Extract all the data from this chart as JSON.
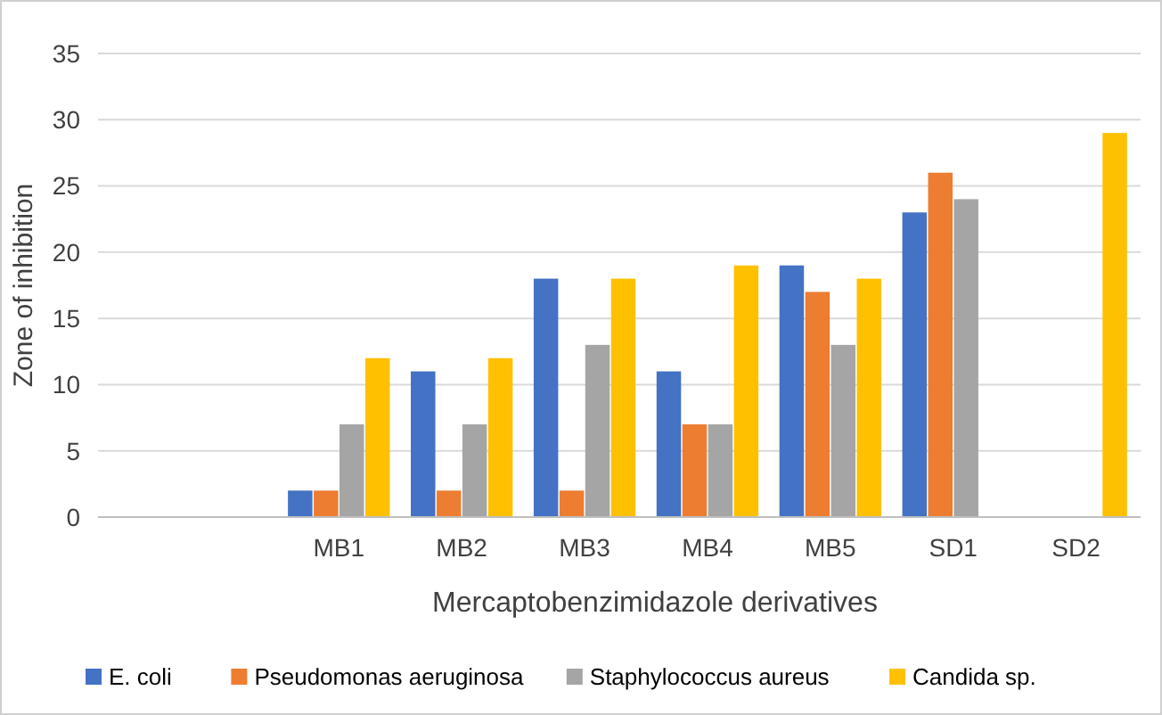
{
  "chart_data": {
    "type": "bar",
    "xlabel": "Mercaptobenzimidazole derivatives",
    "ylabel": "Zone of inhibition",
    "categories": [
      null,
      "MB1",
      "MB2",
      "MB3",
      "MB4",
      "MB5",
      "SD1",
      "SD2"
    ],
    "series": [
      {
        "name": "E. coli",
        "color": "#4472c4",
        "values": [
          null,
          2,
          11,
          18,
          11,
          19,
          23,
          null
        ]
      },
      {
        "name": "Pseudomonas aeruginosa",
        "color": "#ed7d31",
        "values": [
          null,
          2,
          2,
          2,
          7,
          17,
          26,
          null
        ]
      },
      {
        "name": "Staphylococcus aureus",
        "color": "#a5a5a5",
        "values": [
          null,
          7,
          7,
          13,
          7,
          13,
          24,
          null
        ]
      },
      {
        "name": "Candida sp.",
        "color": "#ffc000",
        "values": [
          null,
          12,
          12,
          18,
          19,
          18,
          null,
          29
        ]
      }
    ],
    "ylim": [
      0,
      35
    ],
    "yticks": [
      0,
      5,
      10,
      15,
      20,
      25,
      30,
      35
    ],
    "grid": "y",
    "legend": "bottom"
  }
}
